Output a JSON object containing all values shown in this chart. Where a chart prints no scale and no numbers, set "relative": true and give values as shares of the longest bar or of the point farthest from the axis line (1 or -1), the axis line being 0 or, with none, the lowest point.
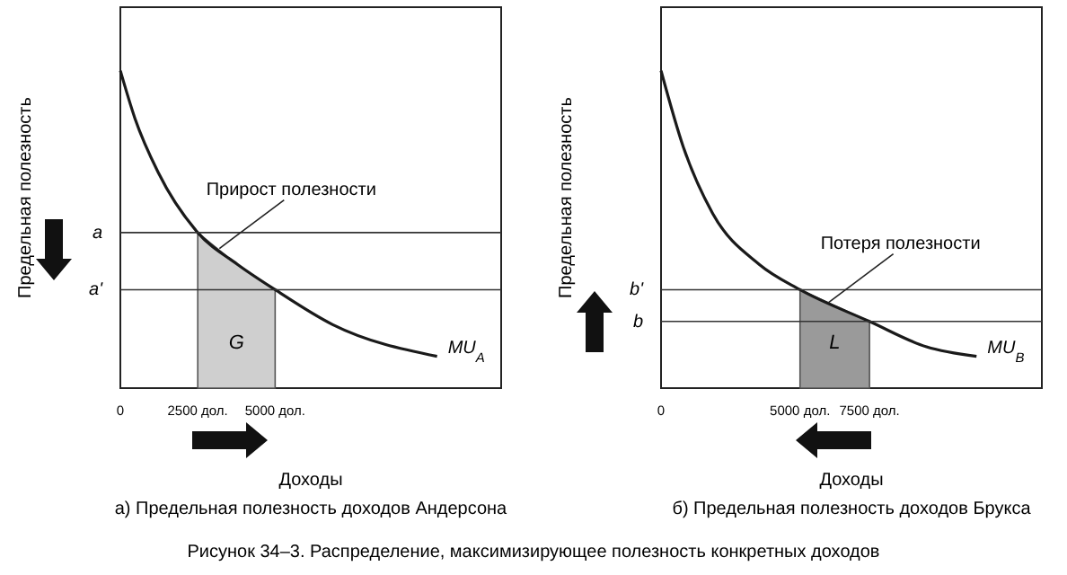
{
  "chart_data": [
    {
      "type": "line",
      "relative": true,
      "title": "а) Предельная полезность доходов Андерсона",
      "xlabel": "Доходы",
      "ylabel": "Предельная полезность",
      "xlim": [
        0,
        12300
      ],
      "xticks": [
        0,
        {
          "value": 2500,
          "label": "2500 дол."
        },
        {
          "value": 5000,
          "label": "5000 дол."
        }
      ],
      "grid": false,
      "series": [
        {
          "name": "MU$_{A}$",
          "color": "#1a1a1a",
          "x": [
            0,
            470,
            1220,
            2500,
            3780,
            5000,
            6860,
            10230
          ],
          "values": [
            1,
            0.85,
            0.68,
            0.49,
            0.39,
            0.31,
            0.2,
            0.1
          ]
        },
        {
          "type": "area",
          "name": "G",
          "color": "#cfcfcf",
          "x": [
            2500,
            3780,
            5000
          ],
          "values": [
            0.49,
            0.39,
            0.31
          ]
        }
      ],
      "ref_lines": [
        {
          "axis": "y",
          "value": 0.49,
          "label": "a"
        },
        {
          "axis": "y",
          "value": 0.31,
          "label": "a'"
        }
      ],
      "annotations": [
        {
          "text": "Прирост полезности",
          "x": 3200,
          "y": 0.44
        },
        "Рисунок 34–3. Распределение, максимизирующее полезность конкретных доходов"
      ]
    },
    {
      "type": "line",
      "relative": true,
      "title": "б) Предельная полезность доходов Брукса",
      "xlabel": "Доходы",
      "ylabel": "Предельная полезность",
      "xlim": [
        0,
        13700
      ],
      "xticks": [
        0,
        {
          "value": 5000,
          "label": "5000 дол."
        },
        {
          "value": 7500,
          "label": "7500 дол."
        }
      ],
      "grid": false,
      "series": [
        {
          "name": "MU$_{B}$",
          "color": "#1a1a1a",
          "x": [
            0,
            800,
            1860,
            3530,
            5000,
            7500,
            9550,
            11350
          ],
          "values": [
            1,
            0.76,
            0.55,
            0.39,
            0.31,
            0.21,
            0.13,
            0.1
          ]
        },
        {
          "type": "area",
          "name": "L",
          "color": "#9a9a9a",
          "x": [
            5000,
            6250,
            7500
          ],
          "values": [
            0.31,
            0.26,
            0.21
          ]
        }
      ],
      "ref_lines": [
        {
          "axis": "y",
          "value": 0.31,
          "label": "b'"
        },
        {
          "axis": "y",
          "value": 0.21,
          "label": "b"
        }
      ],
      "annotations": [
        {
          "text": "Потеря полезности",
          "x": 6030,
          "y": 0.27
        }
      ]
    }
  ]
}
